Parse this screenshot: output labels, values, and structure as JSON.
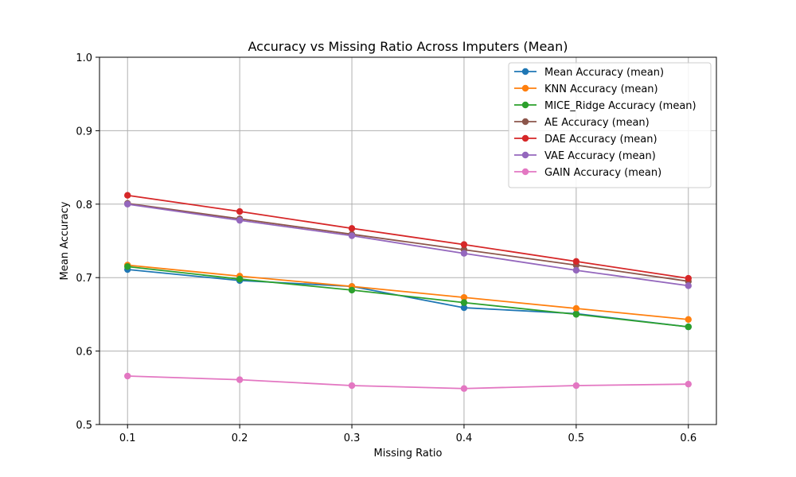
{
  "chart_data": {
    "type": "line",
    "title": "Accuracy vs Missing Ratio Across Imputers (Mean)",
    "xlabel": "Missing Ratio",
    "ylabel": "Mean Accuracy",
    "x": [
      0.1,
      0.2,
      0.3,
      0.4,
      0.5,
      0.6
    ],
    "x_tick_labels": [
      "0.1",
      "0.2",
      "0.3",
      "0.4",
      "0.5",
      "0.6"
    ],
    "y_ticks": [
      0.5,
      0.6,
      0.7,
      0.8,
      0.9,
      1.0
    ],
    "y_tick_labels": [
      "0.5",
      "0.6",
      "0.7",
      "0.8",
      "0.9",
      "1.0"
    ],
    "xlim": [
      0.075,
      0.625
    ],
    "ylim": [
      0.5,
      1.0
    ],
    "grid": true,
    "legend_position": "upper right",
    "series": [
      {
        "name": "Mean Accuracy (mean)",
        "color": "#1f77b4",
        "values": [
          0.711,
          0.696,
          0.688,
          0.659,
          0.651,
          0.633
        ]
      },
      {
        "name": "KNN Accuracy (mean)",
        "color": "#ff7f0e",
        "values": [
          0.717,
          0.702,
          0.688,
          0.673,
          0.658,
          0.643
        ]
      },
      {
        "name": "MICE_Ridge Accuracy (mean)",
        "color": "#2ca02c",
        "values": [
          0.715,
          0.698,
          0.683,
          0.666,
          0.65,
          0.633
        ]
      },
      {
        "name": "AE Accuracy (mean)",
        "color": "#8c564b",
        "values": [
          0.801,
          0.78,
          0.759,
          0.738,
          0.717,
          0.695
        ]
      },
      {
        "name": "DAE Accuracy (mean)",
        "color": "#d62728",
        "values": [
          0.812,
          0.79,
          0.767,
          0.745,
          0.722,
          0.699
        ]
      },
      {
        "name": "VAE Accuracy (mean)",
        "color": "#9467bd",
        "values": [
          0.8,
          0.778,
          0.757,
          0.733,
          0.71,
          0.689
        ]
      },
      {
        "name": "GAIN Accuracy (mean)",
        "color": "#e377c2",
        "values": [
          0.566,
          0.561,
          0.553,
          0.549,
          0.553,
          0.555
        ]
      }
    ]
  }
}
